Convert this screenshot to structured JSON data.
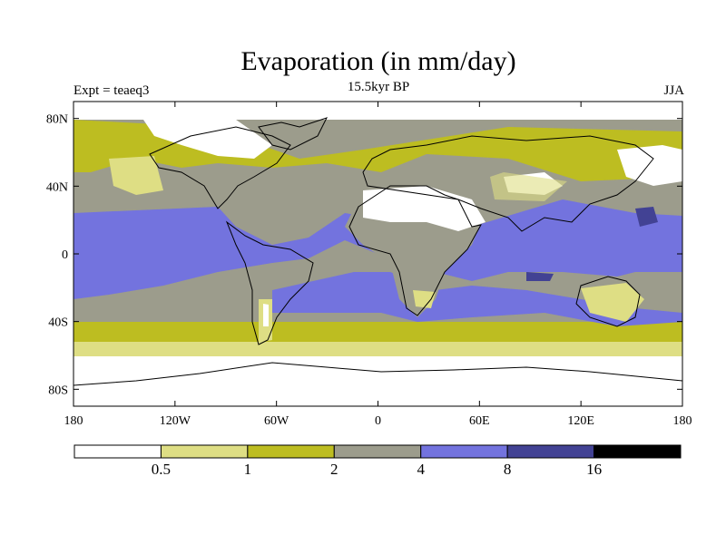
{
  "title": "Evaporation (in mm/day)",
  "subtitle": "15.5kyr BP",
  "left_label": "Expt = teaeq3",
  "right_label": "JJA",
  "chart_data": {
    "type": "heatmap",
    "variable": "Evaporation",
    "units": "mm/day",
    "period": "15.5kyr BP",
    "season": "JJA",
    "experiment": "teaeq3",
    "lon_range": [
      -180,
      180
    ],
    "lat_range": [
      -90,
      90
    ],
    "x_ticks": [
      {
        "value": -180,
        "label": "180"
      },
      {
        "value": -120,
        "label": "120W"
      },
      {
        "value": -60,
        "label": "60W"
      },
      {
        "value": 0,
        "label": "0"
      },
      {
        "value": 60,
        "label": "60E"
      },
      {
        "value": 120,
        "label": "120E"
      },
      {
        "value": 180,
        "label": "180"
      }
    ],
    "y_ticks": [
      {
        "value": 80,
        "label": "80N"
      },
      {
        "value": 40,
        "label": "40N"
      },
      {
        "value": 0,
        "label": "0"
      },
      {
        "value": -40,
        "label": "40S"
      },
      {
        "value": -80,
        "label": "80S"
      }
    ],
    "contour_levels": [
      0.5,
      1,
      2,
      4,
      8,
      16
    ],
    "level_labels": [
      "0.5",
      "1",
      "2",
      "4",
      "8",
      "16"
    ],
    "colors": [
      "#ffffff",
      "#dede84",
      "#bdbd21",
      "#9c9c8c",
      "#7373de",
      "#424294",
      "#000000"
    ]
  }
}
